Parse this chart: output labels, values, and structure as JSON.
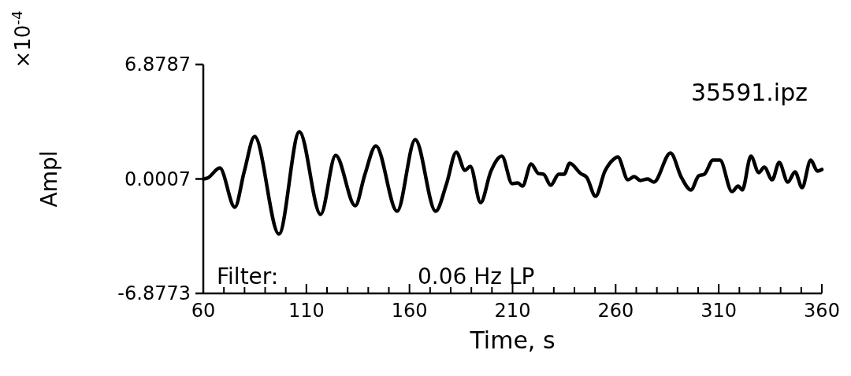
{
  "chart_data": {
    "type": "line",
    "xlabel": "Time, s",
    "ylabel": "Ampl",
    "annotations": [
      "×10$^{-4}$",
      "35591.ipz",
      "Filter:",
      "0.06 Hz LP"
    ],
    "x": [
      60,
      62,
      68,
      75.3,
      79.9,
      84.9,
      96.7,
      106.6,
      116.9,
      124.2,
      133.7,
      138.3,
      143.7,
      154,
      162.8,
      172.7,
      178,
      182.7,
      186.9,
      189.5,
      194.5,
      199.5,
      204.8,
      209.8,
      212.5,
      214.8,
      219,
      222.5,
      225.1,
      228.5,
      232.4,
      235,
      237.7,
      243,
      246,
      250.2,
      254.8,
      259,
      261,
      266,
      269,
      272,
      275.5,
      278.5,
      286.6,
      291.9,
      296.5,
      300.3,
      303,
      307.2,
      310.6,
      316.4,
      319.4,
      321.4,
      325.6,
      329.4,
      332.1,
      335.9,
      339.3,
      343.5,
      347,
      350.4,
      354.6,
      357.9,
      360
    ],
    "series": [
      {
        "color": "#000000",
        "values": [
          0,
          0.05,
          0.66,
          -1.7,
          0.47,
          2.55,
          -3.31,
          2.84,
          -2.13,
          1.42,
          -1.61,
          0.24,
          1.99,
          -1.94,
          2.37,
          -1.94,
          -0.28,
          1.61,
          0.52,
          0.76,
          -1.42,
          0.47,
          1.37,
          -0.28,
          -0.24,
          -0.43,
          0.9,
          0.33,
          0.28,
          -0.38,
          0.28,
          0.28,
          0.95,
          0.33,
          0.09,
          -1.04,
          0.47,
          1.18,
          1.32,
          -0.05,
          0.14,
          -0.09,
          0,
          -0.19,
          1.56,
          0.09,
          -0.66,
          0.19,
          0.28,
          1.13,
          1.13,
          -0.76,
          -0.43,
          -0.66,
          1.37,
          0.38,
          0.71,
          -0.05,
          0.99,
          -0.19,
          0.43,
          -0.52,
          1.13,
          0.47,
          0.57
        ]
      }
    ],
    "xlim": [
      60,
      360
    ],
    "xticks": [
      60,
      {
        "value": 70,
        "label": null
      },
      {
        "value": 80,
        "label": null
      },
      {
        "value": 90,
        "label": null
      },
      {
        "value": 100,
        "label": null
      },
      110,
      {
        "value": 120,
        "label": null
      },
      {
        "value": 130,
        "label": null
      },
      {
        "value": 140,
        "label": null
      },
      {
        "value": 150,
        "label": null
      },
      160,
      {
        "value": 170,
        "label": null
      },
      {
        "value": 180,
        "label": null
      },
      {
        "value": 190,
        "label": null
      },
      {
        "value": 200,
        "label": null
      },
      210,
      {
        "value": 220,
        "label": null
      },
      {
        "value": 230,
        "label": null
      },
      {
        "value": 240,
        "label": null
      },
      {
        "value": 250,
        "label": null
      },
      260,
      {
        "value": 270,
        "label": null
      },
      {
        "value": 280,
        "label": null
      },
      {
        "value": 290,
        "label": null
      },
      {
        "value": 300,
        "label": null
      },
      310,
      {
        "value": 320,
        "label": null
      },
      {
        "value": 330,
        "label": null
      },
      {
        "value": 340,
        "label": null
      },
      {
        "value": 350,
        "label": null
      },
      360
    ],
    "ylim": [
      -6.8773,
      6.8787
    ],
    "yticks": [
      -6.8773,
      0.0007,
      6.8787
    ],
    "grid": false,
    "marker": "none",
    "line_style": "solid"
  }
}
